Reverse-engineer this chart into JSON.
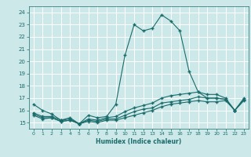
{
  "x": [
    0,
    1,
    2,
    3,
    4,
    5,
    6,
    7,
    8,
    9,
    10,
    11,
    12,
    13,
    14,
    15,
    16,
    17,
    18,
    19,
    20,
    21,
    22,
    23
  ],
  "line1": [
    16.5,
    16.0,
    15.7,
    15.2,
    15.4,
    14.9,
    15.6,
    15.4,
    15.5,
    16.5,
    20.5,
    23.0,
    22.5,
    22.7,
    23.8,
    23.3,
    22.5,
    19.2,
    17.5,
    17.0,
    17.0,
    16.9,
    16.0,
    16.9
  ],
  "line2": [
    15.8,
    15.5,
    15.5,
    15.2,
    15.3,
    14.9,
    15.3,
    15.2,
    15.4,
    15.5,
    15.9,
    16.2,
    16.4,
    16.6,
    17.0,
    17.2,
    17.3,
    17.4,
    17.5,
    17.3,
    17.3,
    17.0,
    16.0,
    17.0
  ],
  "line3": [
    15.7,
    15.4,
    15.4,
    15.1,
    15.2,
    14.9,
    15.2,
    15.1,
    15.3,
    15.3,
    15.6,
    15.9,
    16.1,
    16.2,
    16.6,
    16.7,
    16.8,
    16.9,
    17.1,
    17.0,
    17.0,
    16.9,
    16.0,
    16.9
  ],
  "line4": [
    15.6,
    15.3,
    15.4,
    15.1,
    15.2,
    14.9,
    15.1,
    15.0,
    15.2,
    15.2,
    15.4,
    15.6,
    15.8,
    16.0,
    16.3,
    16.5,
    16.6,
    16.7,
    16.8,
    16.7,
    16.7,
    16.8,
    16.0,
    16.8
  ],
  "bg_color": "#cce8e8",
  "line_color": "#1a6b6b",
  "grid_color": "#ffffff",
  "xlabel": "Humidex (Indice chaleur)",
  "ylim": [
    14.5,
    24.5
  ],
  "xlim": [
    -0.5,
    23.5
  ],
  "yticks": [
    15,
    16,
    17,
    18,
    19,
    20,
    21,
    22,
    23,
    24
  ],
  "xticks": [
    0,
    1,
    2,
    3,
    4,
    5,
    6,
    7,
    8,
    9,
    10,
    11,
    12,
    13,
    14,
    15,
    16,
    17,
    18,
    19,
    20,
    21,
    22,
    23
  ]
}
